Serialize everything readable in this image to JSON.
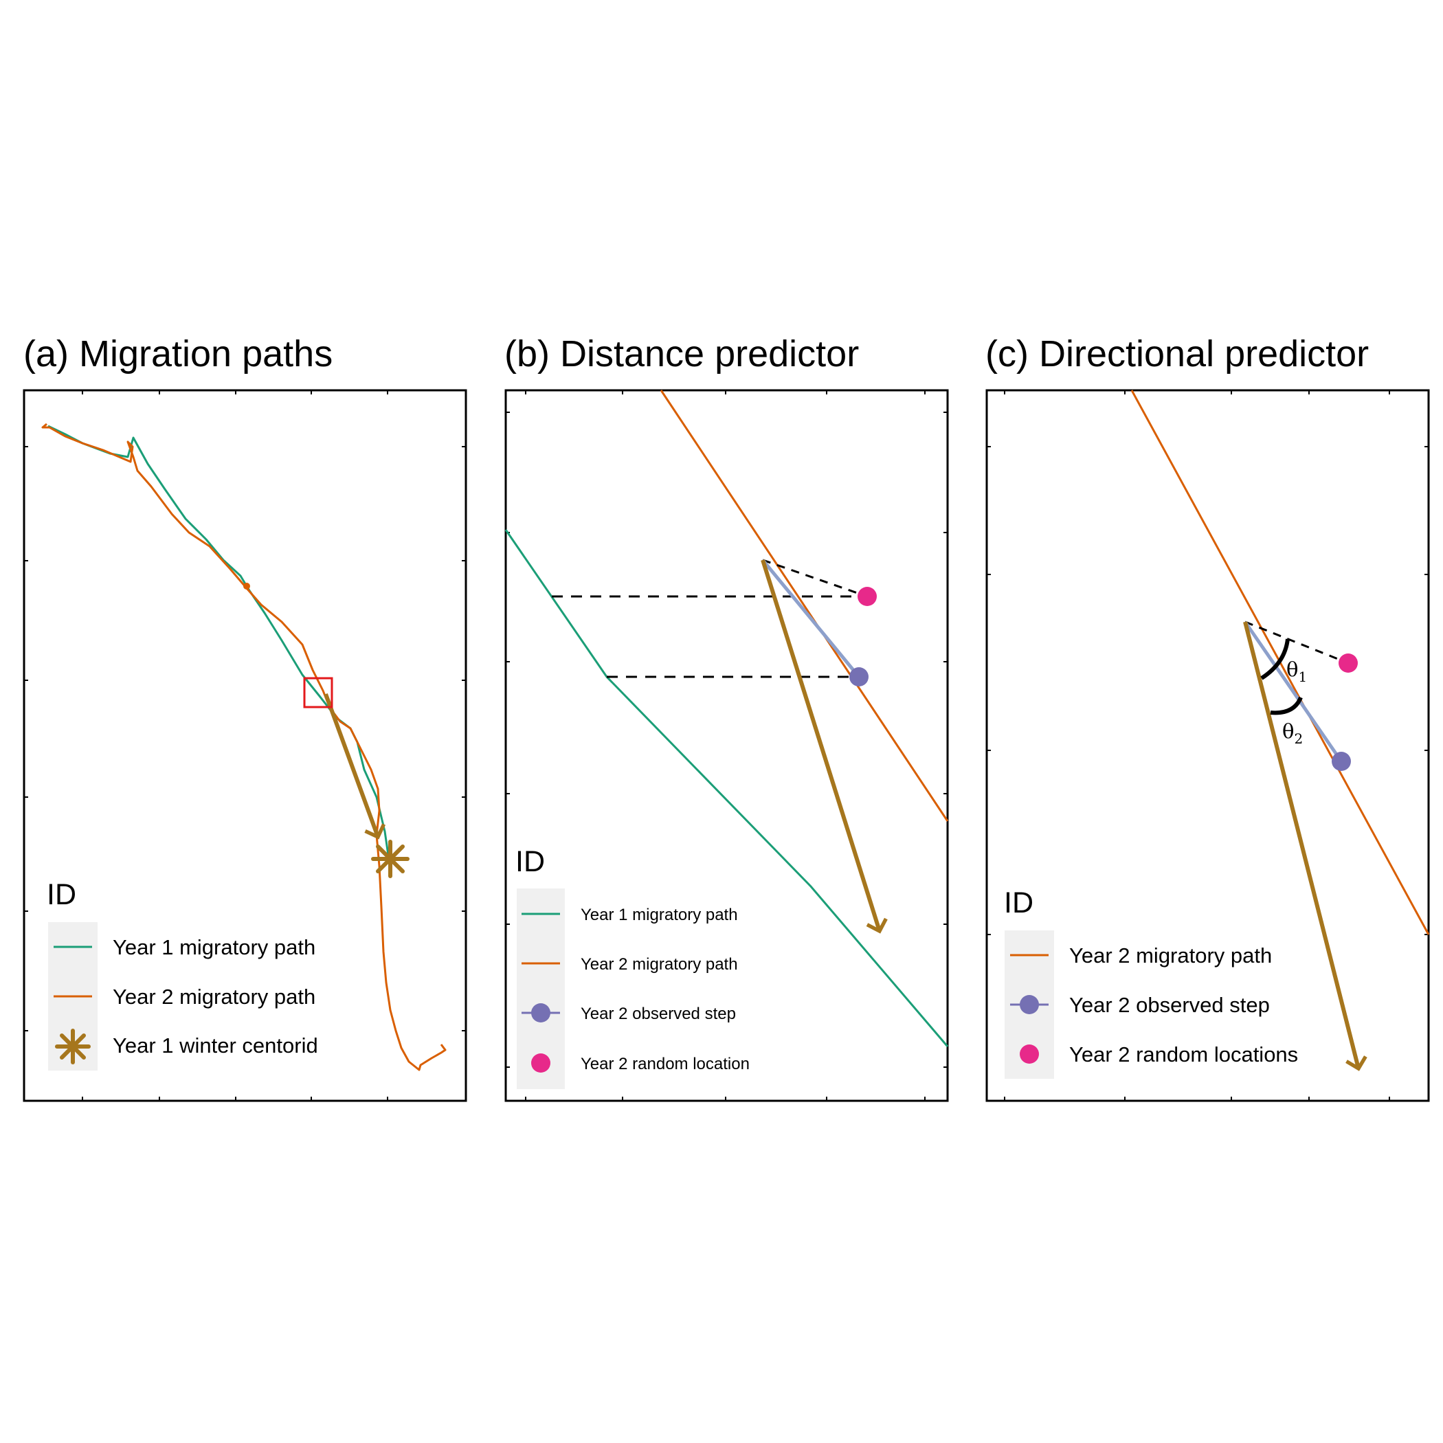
{
  "colors": {
    "year1_path": "#1b9e77",
    "year2_path": "#d95f02",
    "observed_step": "#7570b3",
    "observed_step_line": "#8da0cb",
    "random_location": "#e7298a",
    "winter_arrow": "#a6761d",
    "highlight_box": "#e31a1c",
    "legend_bg": "#f0f0f0"
  },
  "panels": {
    "a": {
      "title": "(a) Migration paths",
      "legend_title": "ID",
      "legend": [
        {
          "label": "Year 1 migratory path",
          "kind": "line",
          "color_key": "year1_path"
        },
        {
          "label": "Year 2 migratory path",
          "kind": "line",
          "color_key": "year2_path"
        },
        {
          "label": "Year 1 winter centorid",
          "kind": "asterisk",
          "color_key": "winter_arrow"
        }
      ]
    },
    "b": {
      "title": "(b) Distance predictor",
      "legend_title": "ID",
      "legend": [
        {
          "label": "Year 1 migratory path",
          "kind": "line",
          "color_key": "year1_path"
        },
        {
          "label": "Year 2 migratory path",
          "kind": "line",
          "color_key": "year2_path"
        },
        {
          "label": "Year 2 observed step",
          "kind": "line-point",
          "color_key": "observed_step"
        },
        {
          "label": "Year 2 random location",
          "kind": "point",
          "color_key": "random_location"
        }
      ]
    },
    "c": {
      "title": "(c) Directional predictor",
      "legend_title": "ID",
      "theta1": {
        "symbol": "θ",
        "sub": "1"
      },
      "theta2": {
        "symbol": "θ",
        "sub": "2"
      },
      "legend": [
        {
          "label": "Year 2 migratory path",
          "kind": "line",
          "color_key": "year2_path"
        },
        {
          "label": "Year 2 observed step",
          "kind": "line-point",
          "color_key": "observed_step"
        },
        {
          "label": "Year 2 random locations",
          "kind": "point",
          "color_key": "random_location"
        }
      ]
    }
  }
}
